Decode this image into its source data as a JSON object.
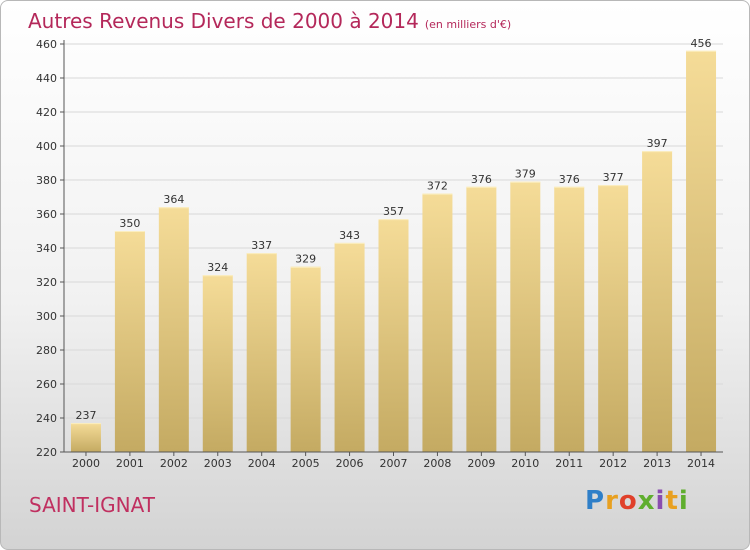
{
  "title": "Autres Revenus Divers de 2000 à 2014",
  "unit_note": "(en milliers d'€)",
  "town": "SAINT-IGNAT",
  "logo": {
    "letters": [
      "P",
      "r",
      "o",
      "x",
      "i",
      "t",
      "i"
    ]
  },
  "colors": {
    "title": "#b4285a",
    "bar_light": "#f5dc98",
    "bar_dark": "#c4aa62",
    "gridline": "#d8d8d8"
  },
  "chart_data": {
    "type": "bar",
    "categories": [
      "2000",
      "2001",
      "2002",
      "2003",
      "2004",
      "2005",
      "2006",
      "2007",
      "2008",
      "2009",
      "2010",
      "2011",
      "2012",
      "2013",
      "2014"
    ],
    "values": [
      237,
      350,
      364,
      324,
      337,
      329,
      343,
      357,
      372,
      376,
      379,
      376,
      377,
      397,
      456
    ],
    "value_labels": [
      "237",
      "350",
      "364",
      "324",
      "337",
      "329",
      "343",
      "357",
      "372",
      "376",
      "379",
      "376",
      "377",
      "397",
      "456"
    ],
    "title": "Autres Revenus Divers de 2000 à 2014",
    "xlabel": "",
    "ylabel": "",
    "ylim": [
      220,
      460
    ],
    "yticks": [
      220,
      240,
      260,
      280,
      300,
      320,
      340,
      360,
      380,
      400,
      420,
      440,
      460
    ],
    "grid": true,
    "legend": "none"
  }
}
